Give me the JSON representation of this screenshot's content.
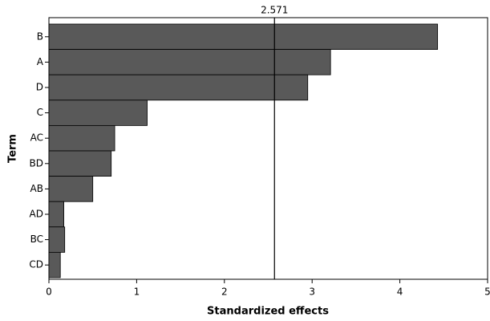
{
  "chart_data": {
    "type": "hbar",
    "x_label": "Standardized effects",
    "y_label": "Term",
    "categories": [
      "B",
      "A",
      "D",
      "C",
      "AC",
      "BD",
      "AB",
      "AD",
      "BC",
      "CD"
    ],
    "values": [
      4.43,
      3.21,
      2.95,
      1.12,
      0.75,
      0.71,
      0.5,
      0.17,
      0.18,
      0.13
    ],
    "color": "#595959",
    "xlim": [
      0,
      5
    ],
    "xticks": [
      0,
      1,
      2,
      3,
      4,
      5
    ],
    "reference_line": 2.571
  }
}
